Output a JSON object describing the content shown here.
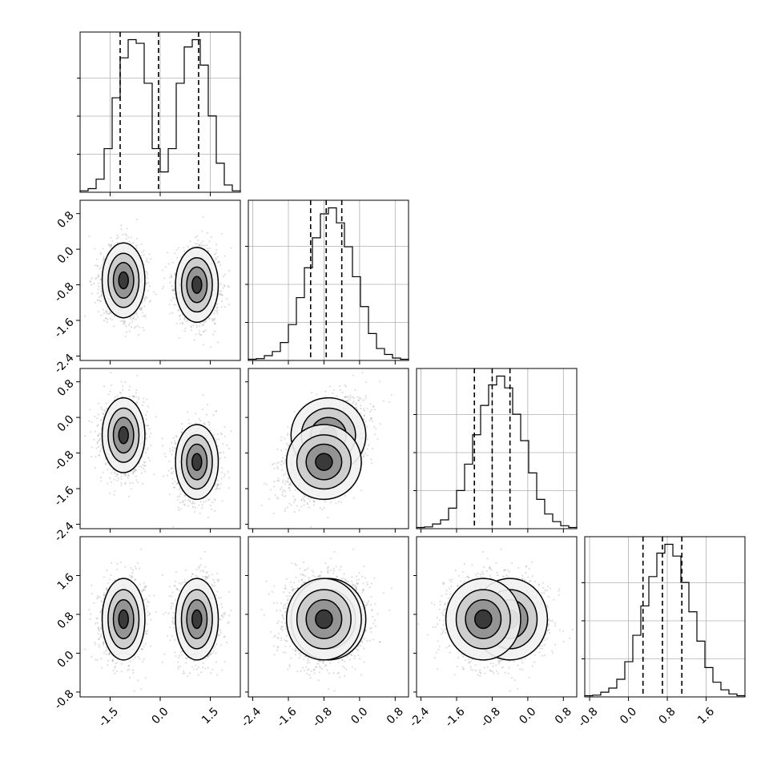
{
  "chart_data": {
    "type": "corner",
    "parameters": [
      {
        "name": "",
        "range": [
          -2.4,
          2.4
        ],
        "ticks": [
          "-1.5",
          "0.0",
          "1.5"
        ],
        "tick_values": [
          -1.5,
          0.0,
          1.5
        ]
      },
      {
        "name": "",
        "range": [
          -2.5,
          1.1
        ],
        "ticks": [
          "-2.4",
          "-1.6",
          "-0.8",
          "0.0",
          "0.8"
        ],
        "tick_values": [
          -2.4,
          -1.6,
          -0.8,
          0.0,
          0.8
        ]
      },
      {
        "name": "",
        "range": [
          -2.5,
          1.1
        ],
        "ticks": [
          "-2.4",
          "-1.6",
          "-0.8",
          "0.0",
          "0.8"
        ],
        "tick_values": [
          -2.4,
          -1.6,
          -0.8,
          0.0,
          0.8
        ]
      },
      {
        "name": "",
        "range": [
          -0.9,
          2.4
        ],
        "ticks": [
          "-0.8",
          "0.0",
          "0.8",
          "1.6"
        ],
        "tick_values": [
          -0.8,
          0.0,
          0.8,
          1.6
        ]
      }
    ],
    "histograms": [
      {
        "bins": 20,
        "counts": [
          2,
          5,
          18,
          60,
          130,
          185,
          210,
          205,
          150,
          60,
          28,
          60,
          150,
          200,
          210,
          175,
          105,
          40,
          10,
          2
        ],
        "quantiles": [
          -1.2,
          -0.05,
          1.15
        ]
      },
      {
        "bins": 20,
        "counts": [
          2,
          3,
          8,
          15,
          30,
          60,
          105,
          155,
          205,
          245,
          255,
          230,
          190,
          140,
          90,
          45,
          20,
          10,
          4,
          2
        ],
        "quantiles": [
          -1.1,
          -0.75,
          -0.4
        ]
      },
      {
        "bins": 20,
        "counts": [
          2,
          3,
          8,
          15,
          35,
          65,
          110,
          160,
          210,
          245,
          260,
          240,
          195,
          150,
          95,
          50,
          25,
          12,
          5,
          2
        ],
        "quantiles": [
          -1.2,
          -0.8,
          -0.4
        ]
      },
      {
        "bins": 20,
        "counts": [
          2,
          3,
          8,
          15,
          30,
          60,
          105,
          155,
          205,
          245,
          260,
          240,
          195,
          145,
          95,
          50,
          25,
          12,
          5,
          2
        ],
        "quantiles": [
          0.3,
          0.7,
          1.1
        ]
      }
    ],
    "clusters": [
      {
        "center": [
          -1.1,
          -0.7,
          -0.4,
          0.7
        ],
        "sigma": [
          0.32,
          0.42,
          0.42,
          0.42
        ],
        "weight": 0.5
      },
      {
        "center": [
          1.1,
          -0.8,
          -1.0,
          0.7
        ],
        "sigma": [
          0.32,
          0.42,
          0.42,
          0.42
        ],
        "weight": 0.5
      }
    ],
    "correlation_12": 0.45,
    "grid": true
  }
}
